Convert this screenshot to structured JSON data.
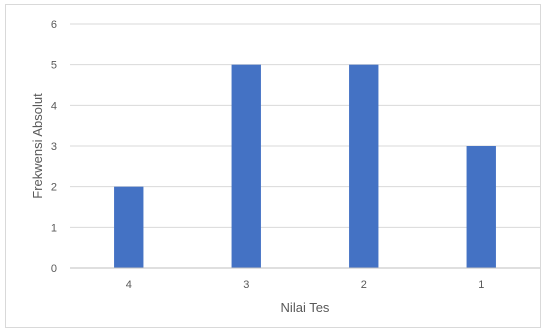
{
  "chart_data": {
    "type": "bar",
    "xlabel": "Nilai Tes",
    "ylabel": "Frekwensi Absolut",
    "categories": [
      "4",
      "3",
      "2",
      "1"
    ],
    "values": [
      2,
      5,
      5,
      3
    ],
    "ylim": [
      0,
      6
    ],
    "yticks": [
      "0",
      "1",
      "2",
      "3",
      "4",
      "5",
      "6"
    ],
    "grid": true,
    "bar_color": "#4472C4",
    "gridline_color": "#d9d9d9",
    "axis_color": "#bfbfbf"
  }
}
